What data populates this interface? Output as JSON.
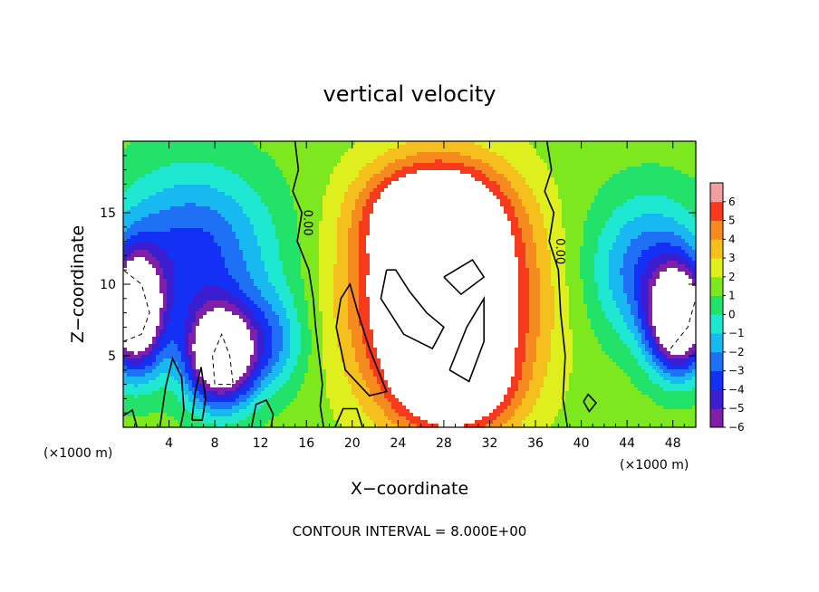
{
  "chart_data": {
    "type": "heatmap",
    "title": "vertical velocity",
    "xlabel": "X−coordinate",
    "ylabel": "Z−coordinate",
    "x_unit_left": "(×1000 m)",
    "x_unit_right": "(×1000 m)",
    "xlim": [
      0,
      50
    ],
    "ylim": [
      0,
      20
    ],
    "x_ticks": [
      4,
      8,
      12,
      16,
      20,
      24,
      28,
      32,
      36,
      40,
      44,
      48
    ],
    "x_tick_labels": [
      "4",
      "8",
      "12",
      "16",
      "20",
      "24",
      "28",
      "32",
      "36",
      "40",
      "44",
      "48"
    ],
    "y_ticks": [
      5,
      10,
      15
    ],
    "y_tick_labels": [
      "5",
      "10",
      "15"
    ],
    "colorbar": {
      "levels": [
        -6,
        -5,
        -4,
        -3,
        -2,
        -1,
        0,
        1,
        2,
        3,
        4,
        5,
        6
      ],
      "labels": [
        "−6",
        "−5",
        "−4",
        "−3",
        "−2",
        "−1",
        "0",
        "1",
        "2",
        "3",
        "4",
        "5",
        "6"
      ],
      "colors": [
        "#7f1fa8",
        "#3a1ed0",
        "#1530f5",
        "#1e70f5",
        "#18b8f0",
        "#1ee8d2",
        "#22e26a",
        "#7ee81e",
        "#dfef1e",
        "#f5c01e",
        "#f58a1e",
        "#f53a1e",
        "#f0a0a0"
      ],
      "out_of_range_color": "#ffffff"
    },
    "contour_labels": [
      "0.00",
      "0.00"
    ],
    "footer": "CONTOUR INTERVAL = 8.000E+00"
  }
}
